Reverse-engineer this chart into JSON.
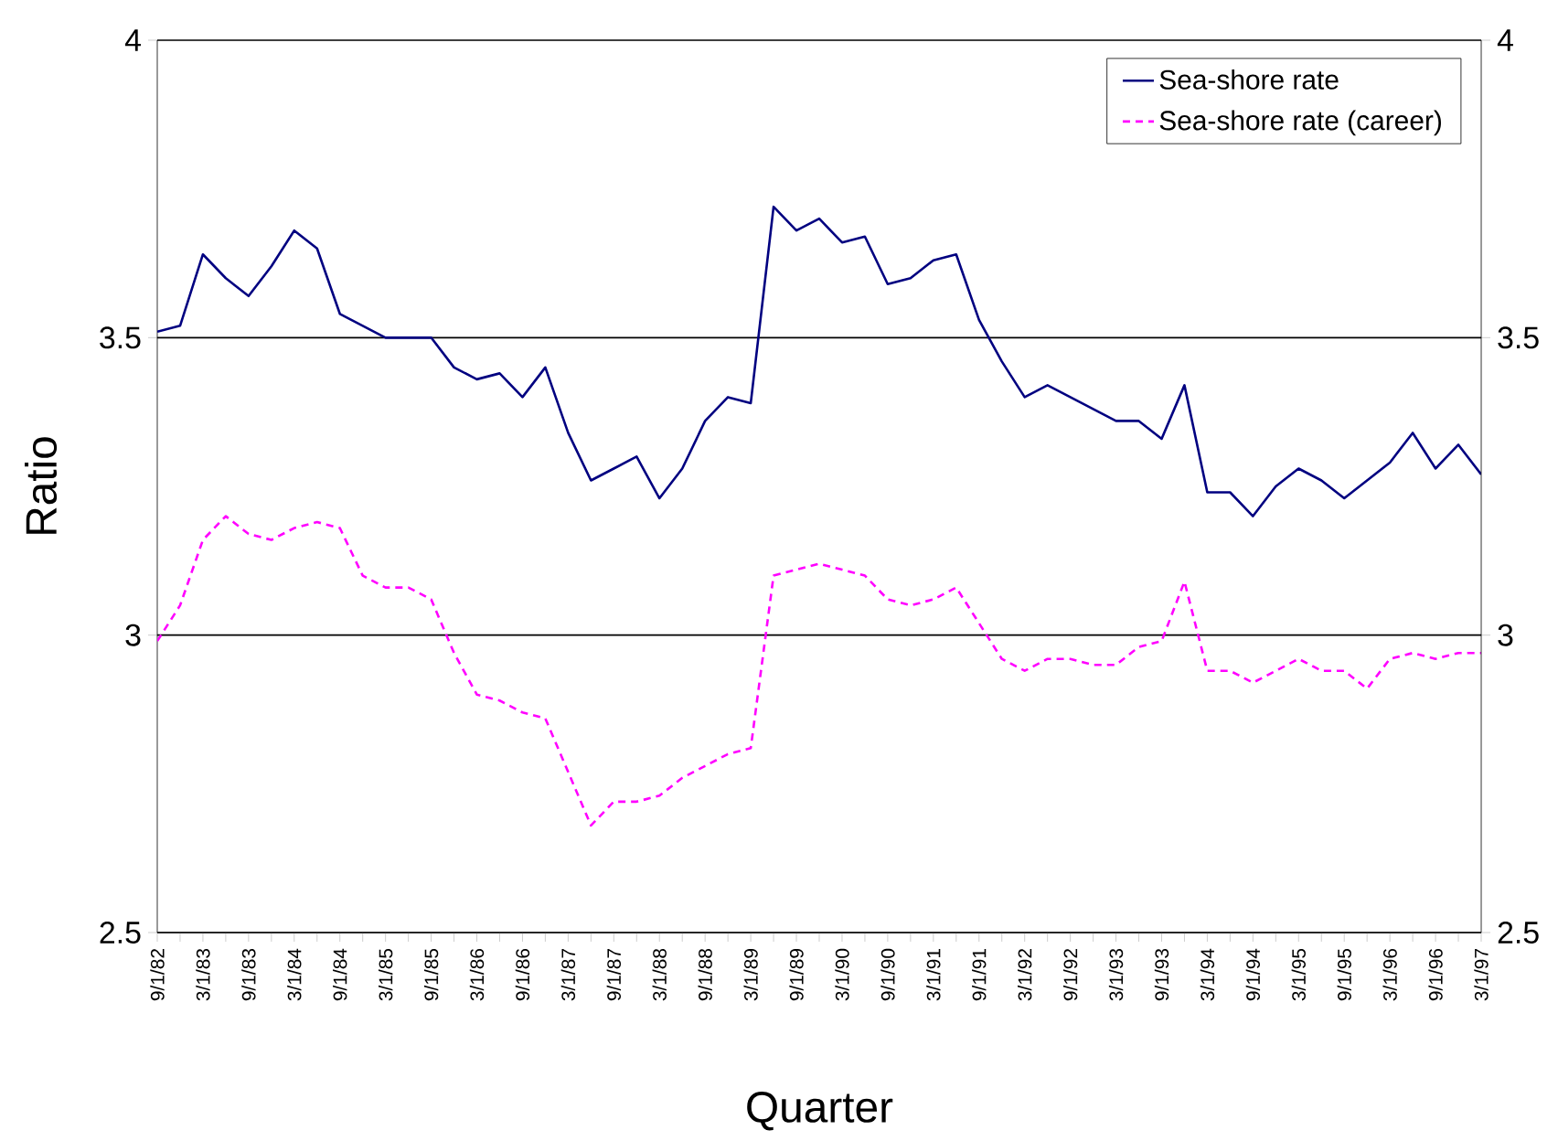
{
  "chart_data": {
    "type": "line",
    "xlabel": "Quarter",
    "ylabel": "Ratio",
    "categories": [
      "9/1/82",
      null,
      "3/1/83",
      null,
      "9/1/83",
      null,
      "3/1/84",
      null,
      "9/1/84",
      null,
      "3/1/85",
      null,
      "9/1/85",
      null,
      "3/1/86",
      null,
      "9/1/86",
      null,
      "3/1/87",
      null,
      "9/1/87",
      null,
      "3/1/88",
      null,
      "9/1/88",
      null,
      "3/1/89",
      null,
      "9/1/89",
      null,
      "3/1/90",
      null,
      "9/1/90",
      null,
      "3/1/91",
      null,
      "9/1/91",
      null,
      "3/1/92",
      null,
      "9/1/92",
      null,
      "3/1/93",
      null,
      "9/1/93",
      null,
      "3/1/94",
      null,
      "9/1/94",
      null,
      "3/1/95",
      null,
      "9/1/95",
      null,
      "3/1/96",
      null,
      "9/1/96",
      null,
      "3/1/97"
    ],
    "series": [
      {
        "name": "Sea-shore rate",
        "color": "#000080",
        "line_style": "solid",
        "values": [
          3.51,
          3.52,
          3.64,
          3.6,
          3.57,
          3.62,
          3.68,
          3.65,
          3.54,
          3.52,
          3.5,
          3.5,
          3.5,
          3.45,
          3.43,
          3.44,
          3.4,
          3.45,
          3.34,
          3.26,
          3.28,
          3.3,
          3.23,
          3.28,
          3.36,
          3.4,
          3.39,
          3.72,
          3.68,
          3.7,
          3.66,
          3.67,
          3.59,
          3.6,
          3.63,
          3.64,
          3.53,
          3.46,
          3.4,
          3.42,
          3.4,
          3.38,
          3.36,
          3.36,
          3.33,
          3.42,
          3.24,
          3.24,
          3.2,
          3.25,
          3.28,
          3.26,
          3.23,
          3.26,
          3.29,
          3.34,
          3.28,
          3.32,
          3.27
        ]
      },
      {
        "name": "Sea-shore rate (career)",
        "color": "#ff00ff",
        "line_style": "dashed",
        "values": [
          2.99,
          3.05,
          3.16,
          3.2,
          3.17,
          3.16,
          3.18,
          3.19,
          3.18,
          3.1,
          3.08,
          3.08,
          3.06,
          2.97,
          2.9,
          2.89,
          2.87,
          2.86,
          2.77,
          2.68,
          2.72,
          2.72,
          2.73,
          2.76,
          2.78,
          2.8,
          2.81,
          3.1,
          3.11,
          3.12,
          3.11,
          3.1,
          3.06,
          3.05,
          3.06,
          3.08,
          3.02,
          2.96,
          2.94,
          2.96,
          2.96,
          2.95,
          2.95,
          2.98,
          2.99,
          3.09,
          2.94,
          2.94,
          2.92,
          2.94,
          2.96,
          2.94,
          2.94,
          2.91,
          2.96,
          2.97,
          2.96,
          2.97,
          2.97
        ]
      }
    ],
    "ylim": [
      2.5,
      4
    ],
    "yticks": [
      2.5,
      3,
      3.5,
      4
    ],
    "y2lim": [
      2.5,
      4
    ],
    "y2ticks": [
      2.5,
      3,
      3.5,
      4
    ],
    "grid": "y",
    "legend": "top right"
  }
}
